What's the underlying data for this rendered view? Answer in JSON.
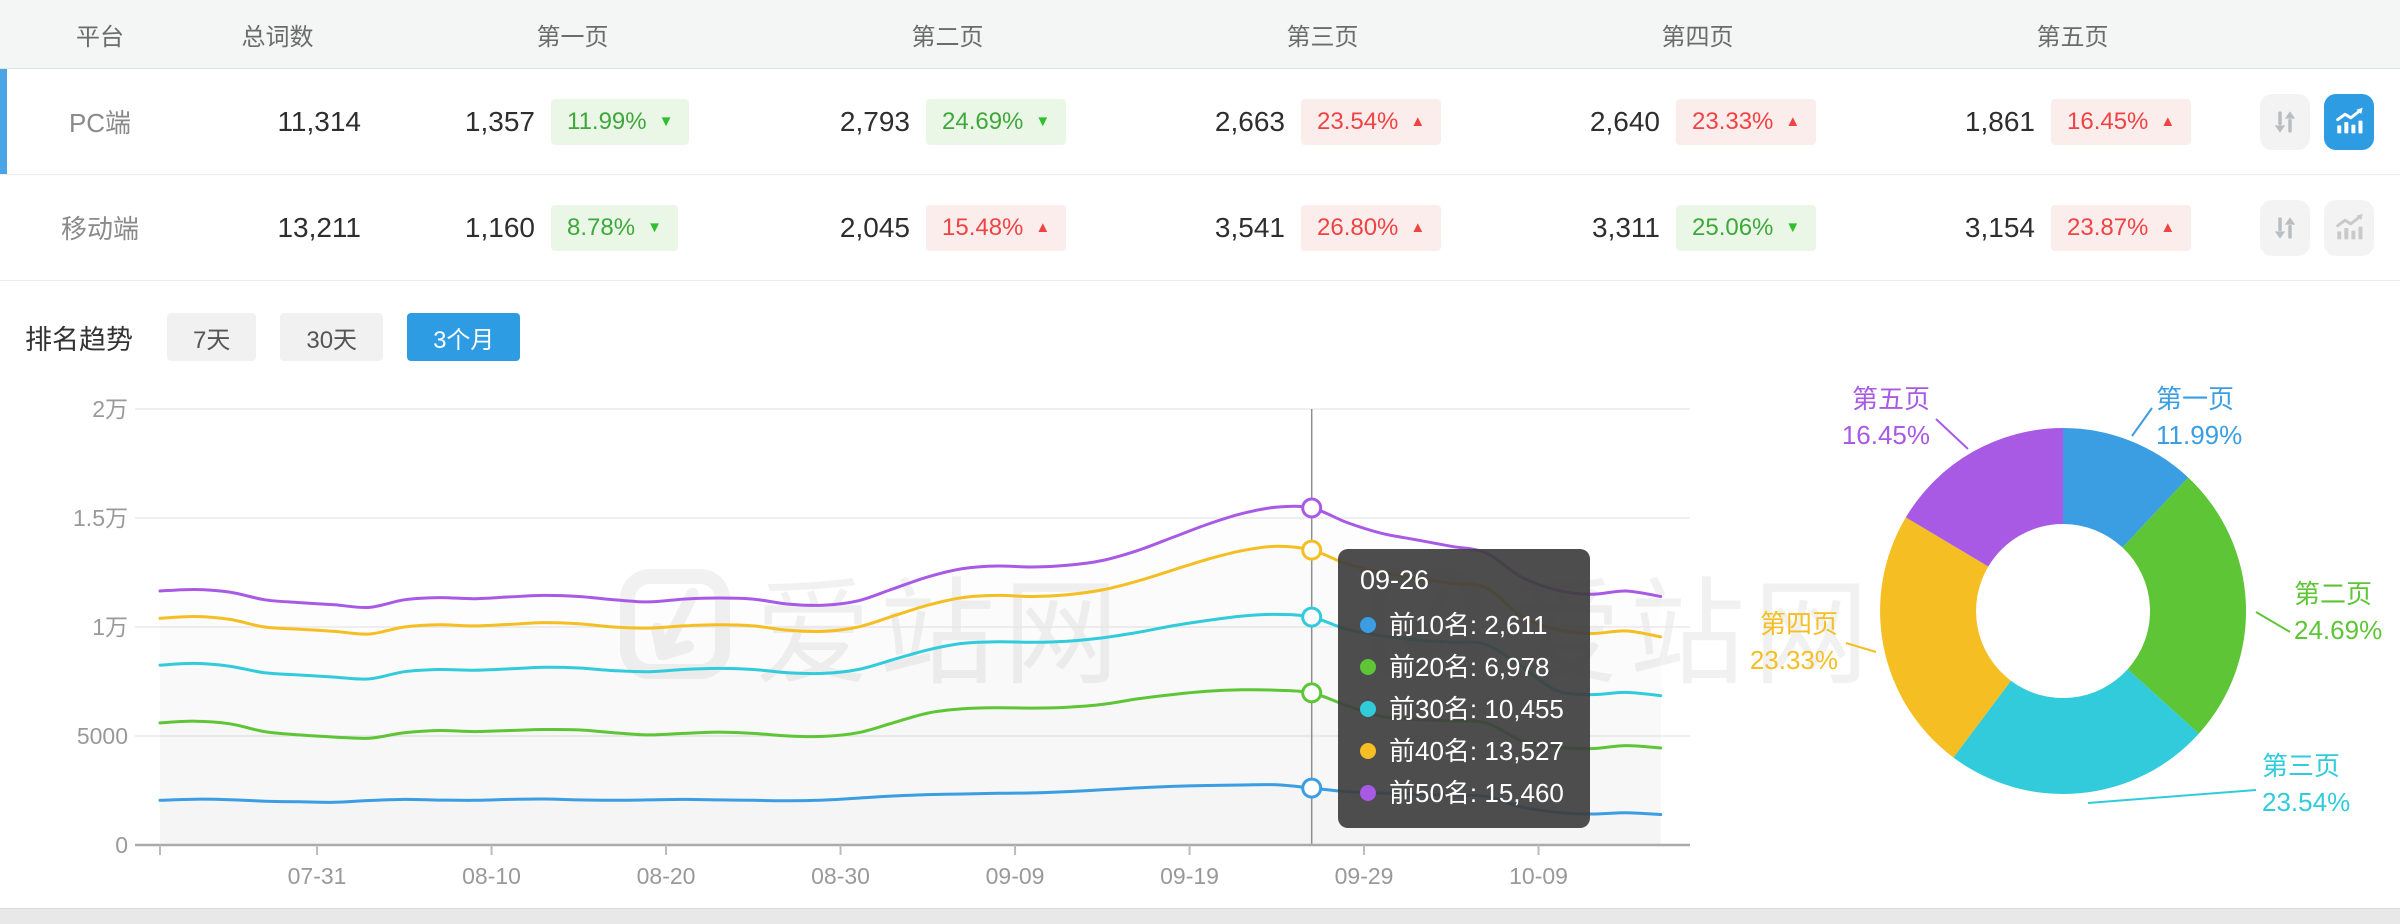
{
  "colors": {
    "accent_blue": "#2E9CE3",
    "row_accent": "#4AA4E6",
    "green_text": "#3FA73C",
    "green_bg": "#EAF7E6",
    "red_text": "#F04343",
    "red_bg": "#FCEDED",
    "inactive_icon": "#c2c2c2",
    "axis_label": "#999999"
  },
  "table": {
    "headers": {
      "platform": "平台",
      "total": "总词数",
      "pages": [
        "第一页",
        "第二页",
        "第三页",
        "第四页",
        "第五页"
      ]
    },
    "rows": [
      {
        "platform": "PC端",
        "total": "11,314",
        "selected": true,
        "pages": [
          {
            "value": "1,357",
            "pct": "11.99%",
            "direction": "down",
            "tone": "green"
          },
          {
            "value": "2,793",
            "pct": "24.69%",
            "direction": "down",
            "tone": "green"
          },
          {
            "value": "2,663",
            "pct": "23.54%",
            "direction": "up",
            "tone": "red"
          },
          {
            "value": "2,640",
            "pct": "23.33%",
            "direction": "up",
            "tone": "red"
          },
          {
            "value": "1,861",
            "pct": "16.45%",
            "direction": "up",
            "tone": "red"
          }
        ],
        "actions": {
          "sort_active": false,
          "chart_active": true
        }
      },
      {
        "platform": "移动端",
        "total": "13,211",
        "selected": false,
        "pages": [
          {
            "value": "1,160",
            "pct": "8.78%",
            "direction": "down",
            "tone": "green"
          },
          {
            "value": "2,045",
            "pct": "15.48%",
            "direction": "up",
            "tone": "red"
          },
          {
            "value": "3,541",
            "pct": "26.80%",
            "direction": "up",
            "tone": "red"
          },
          {
            "value": "3,311",
            "pct": "25.06%",
            "direction": "down",
            "tone": "green"
          },
          {
            "value": "3,154",
            "pct": "23.87%",
            "direction": "up",
            "tone": "red"
          }
        ],
        "actions": {
          "sort_active": false,
          "chart_active": false
        }
      }
    ]
  },
  "trend": {
    "title": "排名趋势",
    "ranges": [
      {
        "label": "7天",
        "active": false
      },
      {
        "label": "30天",
        "active": false
      },
      {
        "label": "3个月",
        "active": true
      }
    ]
  },
  "tooltip": {
    "date": "09-26",
    "rows": [
      {
        "name": "前10名",
        "value": "2,611",
        "color": "#3B9DE2"
      },
      {
        "name": "前20名",
        "value": "6,978",
        "color": "#5EC537"
      },
      {
        "name": "前30名",
        "value": "10,455",
        "color": "#31CBDB"
      },
      {
        "name": "前40名",
        "value": "13,527",
        "color": "#F5BE23"
      },
      {
        "name": "前50名",
        "value": "15,460",
        "color": "#A95AE5"
      }
    ]
  },
  "watermark": "爱站网",
  "chart_data": [
    {
      "type": "line",
      "title": "排名趋势",
      "x": [
        "07-22",
        "07-24",
        "07-26",
        "07-28",
        "07-30",
        "08-01",
        "08-03",
        "08-05",
        "08-07",
        "08-09",
        "08-11",
        "08-13",
        "08-15",
        "08-17",
        "08-19",
        "08-21",
        "08-23",
        "08-25",
        "08-27",
        "08-29",
        "08-31",
        "09-02",
        "09-04",
        "09-06",
        "09-08",
        "09-10",
        "09-12",
        "09-14",
        "09-16",
        "09-18",
        "09-20",
        "09-22",
        "09-24",
        "09-26",
        "09-28",
        "09-30",
        "10-02",
        "10-04",
        "10-06",
        "10-08",
        "10-10",
        "10-12",
        "10-14",
        "10-16"
      ],
      "series": [
        {
          "name": "前10名",
          "color": "#3B9DE2",
          "values": [
            2050,
            2100,
            2080,
            2010,
            1980,
            1960,
            2040,
            2090,
            2060,
            2050,
            2090,
            2110,
            2070,
            2050,
            2070,
            2090,
            2070,
            2050,
            2030,
            2060,
            2150,
            2250,
            2310,
            2340,
            2370,
            2390,
            2450,
            2530,
            2620,
            2690,
            2730,
            2750,
            2760,
            2611,
            2450,
            2380,
            2330,
            2280,
            2230,
            1750,
            1500,
            1420,
            1480,
            1400
          ]
        },
        {
          "name": "前20名",
          "color": "#5EC537",
          "values": [
            5600,
            5680,
            5560,
            5200,
            5050,
            4950,
            4900,
            5150,
            5250,
            5200,
            5250,
            5300,
            5280,
            5150,
            5050,
            5120,
            5180,
            5120,
            5000,
            4980,
            5150,
            5600,
            6050,
            6250,
            6300,
            6280,
            6320,
            6450,
            6700,
            6900,
            7050,
            7120,
            7100,
            6978,
            6400,
            5900,
            5750,
            5700,
            5600,
            4800,
            4500,
            4420,
            4560,
            4450
          ]
        },
        {
          "name": "前30名",
          "color": "#31CBDB",
          "values": [
            8250,
            8330,
            8200,
            7900,
            7800,
            7700,
            7620,
            7950,
            8050,
            8020,
            8080,
            8150,
            8120,
            8000,
            7950,
            8050,
            8100,
            8050,
            7900,
            7870,
            8050,
            8500,
            8950,
            9250,
            9320,
            9300,
            9350,
            9500,
            9750,
            10050,
            10300,
            10500,
            10580,
            10455,
            9900,
            9600,
            9400,
            9300,
            9200,
            8200,
            7100,
            6900,
            7000,
            6850
          ]
        },
        {
          "name": "前40名",
          "color": "#F5BE23",
          "values": [
            10400,
            10480,
            10350,
            10000,
            9900,
            9800,
            9680,
            10000,
            10100,
            10050,
            10120,
            10200,
            10150,
            10000,
            9950,
            10050,
            10100,
            10050,
            9850,
            9800,
            10000,
            10500,
            11000,
            11350,
            11450,
            11400,
            11480,
            11700,
            12100,
            12600,
            13100,
            13500,
            13700,
            13527,
            12900,
            12500,
            12250,
            12000,
            11800,
            10500,
            9900,
            9700,
            9820,
            9550
          ]
        },
        {
          "name": "前50名",
          "color": "#A95AE5",
          "values": [
            11650,
            11720,
            11600,
            11250,
            11120,
            11020,
            10900,
            11250,
            11350,
            11300,
            11380,
            11450,
            11400,
            11250,
            11150,
            11280,
            11330,
            11280,
            11050,
            11000,
            11200,
            11750,
            12300,
            12680,
            12800,
            12750,
            12830,
            13050,
            13500,
            14100,
            14700,
            15200,
            15500,
            15460,
            14800,
            14300,
            14000,
            13700,
            13400,
            12300,
            11700,
            11500,
            11650,
            11400
          ]
        }
      ],
      "ylim": [
        0,
        20000
      ],
      "yticks": [
        {
          "value": 0,
          "label": "0"
        },
        {
          "value": 5000,
          "label": "5000"
        },
        {
          "value": 10000,
          "label": "1万"
        },
        {
          "value": 15000,
          "label": "1.5万"
        },
        {
          "value": 20000,
          "label": "2万"
        }
      ],
      "xticks": [
        "07-31",
        "08-10",
        "08-20",
        "08-30",
        "09-09",
        "09-19",
        "09-29",
        "10-09"
      ],
      "grid": true,
      "legend": false,
      "crosshair": {
        "date": "09-26",
        "index": 33
      }
    },
    {
      "type": "pie",
      "donut": true,
      "slices": [
        {
          "label": "第一页",
          "pct": 11.99,
          "pct_label": "11.99%",
          "color": "#3B9DE2"
        },
        {
          "label": "第二页",
          "pct": 24.69,
          "pct_label": "24.69%",
          "color": "#5EC537"
        },
        {
          "label": "第三页",
          "pct": 23.54,
          "pct_label": "23.54%",
          "color": "#31CBDB"
        },
        {
          "label": "第四页",
          "pct": 23.33,
          "pct_label": "23.33%",
          "color": "#F5BE23"
        },
        {
          "label": "第五页",
          "pct": 16.45,
          "pct_label": "16.45%",
          "color": "#A95AE5"
        }
      ]
    }
  ]
}
